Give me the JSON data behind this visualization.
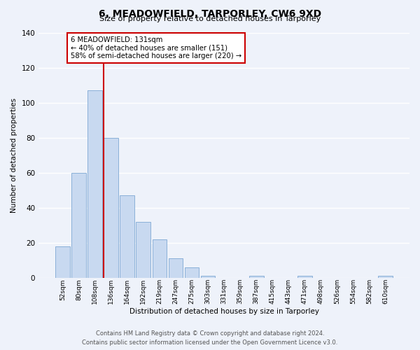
{
  "title": "6, MEADOWFIELD, TARPORLEY, CW6 9XD",
  "subtitle": "Size of property relative to detached houses in Tarporley",
  "xlabel": "Distribution of detached houses by size in Tarporley",
  "ylabel": "Number of detached properties",
  "bar_labels": [
    "52sqm",
    "80sqm",
    "108sqm",
    "136sqm",
    "164sqm",
    "192sqm",
    "219sqm",
    "247sqm",
    "275sqm",
    "303sqm",
    "331sqm",
    "359sqm",
    "387sqm",
    "415sqm",
    "443sqm",
    "471sqm",
    "498sqm",
    "526sqm",
    "554sqm",
    "582sqm",
    "610sqm"
  ],
  "bar_values": [
    18,
    60,
    107,
    80,
    47,
    32,
    22,
    11,
    6,
    1,
    0,
    0,
    1,
    0,
    0,
    1,
    0,
    0,
    0,
    0,
    1
  ],
  "bar_color": "#c8d9f0",
  "bar_edge_color": "#8ab0d8",
  "vline_x_index": 3,
  "vline_color": "#cc0000",
  "annotation_title": "6 MEADOWFIELD: 131sqm",
  "annotation_line1": "← 40% of detached houses are smaller (151)",
  "annotation_line2": "58% of semi-detached houses are larger (220) →",
  "annotation_box_color": "#ffffff",
  "annotation_box_edge_color": "#cc0000",
  "ylim": [
    0,
    140
  ],
  "yticks": [
    0,
    20,
    40,
    60,
    80,
    100,
    120,
    140
  ],
  "footer1": "Contains HM Land Registry data © Crown copyright and database right 2024.",
  "footer2": "Contains public sector information licensed under the Open Government Licence v3.0.",
  "bg_color": "#eef2fa"
}
